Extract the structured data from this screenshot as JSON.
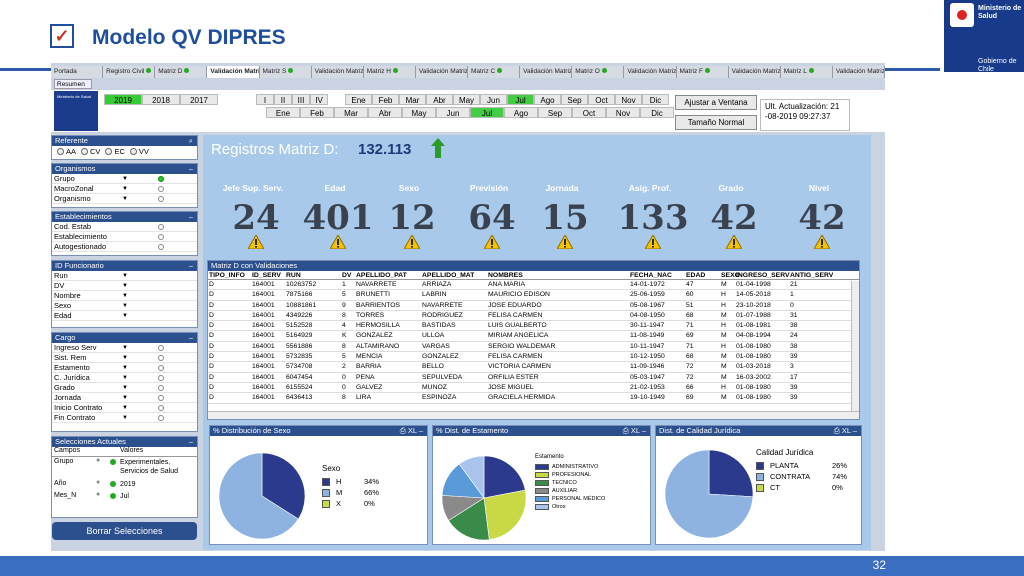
{
  "slide": {
    "title": "Modelo QV DIPRES",
    "checkmark": "✓",
    "page": "32"
  },
  "logo": {
    "line1": "Ministerio de Salud",
    "line2": "Gobierno de Chile"
  },
  "tabs": [
    {
      "label": "Portada",
      "dot": false
    },
    {
      "label": "Registro Civil",
      "dot": true
    },
    {
      "label": "Matriz D",
      "dot": true
    },
    {
      "label": "Validación Matriz D",
      "dot": false,
      "active": true
    },
    {
      "label": "Matriz S",
      "dot": true
    },
    {
      "label": "Validación Matriz S",
      "dot": true
    },
    {
      "label": "Matriz H",
      "dot": true
    },
    {
      "label": "Validación Matriz H",
      "dot": true
    },
    {
      "label": "Matriz C",
      "dot": true
    },
    {
      "label": "Validación Matriz C",
      "dot": true
    },
    {
      "label": "Matriz O",
      "dot": true
    },
    {
      "label": "Validación Matriz O",
      "dot": true
    },
    {
      "label": "Matriz F",
      "dot": true
    },
    {
      "label": "Validación Matriz F",
      "dot": true
    },
    {
      "label": "Matriz L",
      "dot": true
    },
    {
      "label": "Validación Matriz L",
      "dot": true
    }
  ],
  "resumen": "Resumen",
  "minilogo": "Ministerio de Salud",
  "years": [
    {
      "y": "2019",
      "sel": true
    },
    {
      "y": "2018",
      "sel": false
    },
    {
      "y": "2017",
      "sel": false
    }
  ],
  "periods": [
    "I",
    "II",
    "III",
    "IV"
  ],
  "months_top": [
    "Ene",
    "Feb",
    "Mar",
    "Abr",
    "May",
    "Jun",
    "Jul",
    "Ago",
    "Sep",
    "Oct",
    "Nov",
    "Dic"
  ],
  "months_bot": [
    "Ene",
    "Feb",
    "Mar",
    "Abr",
    "May",
    "Jun",
    "Jul",
    "Ago",
    "Sep",
    "Oct",
    "Nov",
    "Dic"
  ],
  "buttons": {
    "ajustar": "Ajustar a Ventana",
    "tamano": "Tamaño Normal"
  },
  "update": {
    "l1": "Ult. Actualización: 21",
    "l2": "-08-2019 09:27:37"
  },
  "referente": {
    "title": "Referente",
    "options": [
      "AA",
      "CV",
      "EC",
      "VV"
    ]
  },
  "organismos": {
    "title": "Organismos",
    "rows": [
      {
        "label": "Grupo",
        "green": true
      },
      {
        "label": "MacroZonal",
        "green": false
      },
      {
        "label": "Organismo",
        "green": false
      }
    ]
  },
  "establecimientos": {
    "title": "Establecimientos",
    "rows": [
      {
        "label": "Cod. Estab",
        "green": false
      },
      {
        "label": "Establecimiento",
        "green": false
      },
      {
        "label": "Autogestionado",
        "green": false
      }
    ]
  },
  "funcionario": {
    "title": "ID Funcionario",
    "rows": [
      {
        "label": "Run"
      },
      {
        "label": "DV"
      },
      {
        "label": "Nombre"
      },
      {
        "label": "Sexo"
      },
      {
        "label": "Edad"
      }
    ]
  },
  "cargo": {
    "title": "Cargo",
    "rows": [
      {
        "label": "Ingreso Serv"
      },
      {
        "label": "Sist. Rem"
      },
      {
        "label": "Estamento"
      },
      {
        "label": "C. Jurídica"
      },
      {
        "label": "Grado"
      },
      {
        "label": "Jornada"
      },
      {
        "label": "Inicio Contrato"
      },
      {
        "label": "Fin Contrato"
      }
    ]
  },
  "selecciones": {
    "title": "Selecciones Actuales",
    "h1": "Campos",
    "h2": "Valores",
    "rows": [
      {
        "campo": "Grupo",
        "valor": "Experimentales, Servicios de Salud"
      },
      {
        "campo": "Año",
        "valor": "2019"
      },
      {
        "campo": "Mes_N",
        "valor": "Jul"
      }
    ]
  },
  "borrar": "Borrar Selecciones",
  "registros": {
    "label": "Registros Matriz D:",
    "value": "132.113"
  },
  "kpis": [
    {
      "label": "Jefe Sup. Serv.",
      "value": "24"
    },
    {
      "label": "Edad",
      "value": "401"
    },
    {
      "label": "Sexo",
      "value": "12"
    },
    {
      "label": "Previsión",
      "value": "64"
    },
    {
      "label": "Jornada",
      "value": "15"
    },
    {
      "label": "Asig. Prof.",
      "value": "133"
    },
    {
      "label": "Grado",
      "value": "42"
    },
    {
      "label": "Nivel",
      "value": "42"
    }
  ],
  "table": {
    "title": "Matriz D con Validaciones",
    "headers": [
      "TIPO_INFO",
      "ID_SERV",
      "RUN",
      "DV",
      "APELLIDO_PAT",
      "APELLIDO_MAT",
      "NOMBRES",
      "FECHA_NAC",
      "EDAD",
      "SEXO",
      "INGRESO_SERV",
      "ANTIG_SERV"
    ],
    "rows": [
      [
        "D",
        "164001",
        "10263752",
        "1",
        "NAVARRETE",
        "ARRIAZA",
        "ANA MARIA",
        "14-01-1972",
        "47",
        "M",
        "01-04-1998",
        "21"
      ],
      [
        "D",
        "164001",
        "7875166",
        "5",
        "BRUNETTI",
        "LABRIN",
        "MAURICIO EDISON",
        "25-06-1959",
        "60",
        "H",
        "14-05-2018",
        "1"
      ],
      [
        "D",
        "164001",
        "10881861",
        "9",
        "BARRIENTOS",
        "NAVARRETE",
        "JOSE EDUARDO",
        "05-08-1967",
        "51",
        "H",
        "23-10-2018",
        "0"
      ],
      [
        "D",
        "164001",
        "4349226",
        "8",
        "TORRES",
        "RODRIGUEZ",
        "FELISA CARMEN",
        "04-08-1950",
        "68",
        "M",
        "01-07-1988",
        "31"
      ],
      [
        "D",
        "164001",
        "5152528",
        "4",
        "HERMOSILLA",
        "BASTIDAS",
        "LUIS GUALBERTO",
        "30-11-1947",
        "71",
        "H",
        "01-08-1981",
        "38"
      ],
      [
        "D",
        "164001",
        "5164929",
        "K",
        "GONZALEZ",
        "ULLOA",
        "MIRIAM ANGELICA",
        "11-08-1949",
        "69",
        "M",
        "04-08-1994",
        "24"
      ],
      [
        "D",
        "164001",
        "5561886",
        "8",
        "ALTAMIRANO",
        "VARGAS",
        "SERGIO WALDEMAR",
        "10-11-1947",
        "71",
        "H",
        "01-08-1980",
        "38"
      ],
      [
        "D",
        "164001",
        "5732835",
        "5",
        "MENCIA",
        "GONZALEZ",
        "FELISA CARMEN",
        "10-12-1950",
        "68",
        "M",
        "01-08-1980",
        "39"
      ],
      [
        "D",
        "164001",
        "5734708",
        "2",
        "BARRIA",
        "BELLO",
        "VICTORIA CARMEN",
        "11-09-1946",
        "72",
        "M",
        "01-03-2018",
        "3"
      ],
      [
        "D",
        "164001",
        "6047454",
        "0",
        "PENA",
        "SEPULVEDA",
        "ORFILIA ESTER",
        "05-03-1947",
        "72",
        "M",
        "16-03-2002",
        "17"
      ],
      [
        "D",
        "164001",
        "6155524",
        "0",
        "GALVEZ",
        "MUNOZ",
        "JOSE MIGUEL",
        "21-02-1953",
        "66",
        "H",
        "01-08-1980",
        "39"
      ],
      [
        "D",
        "164001",
        "6436413",
        "8",
        "LIRA",
        "ESPINOZA",
        "GRACIELA HERMIDA",
        "19-10-1949",
        "69",
        "M",
        "01-08-1980",
        "39"
      ]
    ]
  },
  "chart_sexo": {
    "title": "% Distribución de Sexo",
    "legend_title": "Sexo"
  },
  "chart_estamento": {
    "title": "% Dist. de Estamento",
    "legend_title": "Estamento"
  },
  "chart_juridica": {
    "title": "Dist. de Calidad Jurídica",
    "legend_title": "Calidad Jurídica"
  },
  "chart_data": [
    {
      "type": "pie",
      "title": "% Distribución de Sexo",
      "categories": [
        "H",
        "M",
        "X"
      ],
      "values": [
        34,
        66,
        0
      ],
      "value_labels": [
        "34%",
        "66%",
        "0%"
      ],
      "colors": [
        "#2b3a8c",
        "#8fb3e0",
        "#c9d845"
      ]
    },
    {
      "type": "pie",
      "title": "% Dist. de Estamento",
      "categories": [
        "ADMINISTRATIVO",
        "PROFESIONAL",
        "TECNICO",
        "AUXILIAR",
        "PERSONAL MÉDICO",
        "Otros"
      ],
      "values": [
        22,
        26,
        18,
        10,
        14,
        10
      ],
      "colors": [
        "#2b3a8c",
        "#c9d845",
        "#3a8a4a",
        "#8a8a8a",
        "#5a9ad8",
        "#a8c4ec"
      ]
    },
    {
      "type": "pie",
      "title": "Dist. de Calidad Jurídica",
      "categories": [
        "PLANTA",
        "CONTRATA",
        "CT"
      ],
      "values": [
        26,
        74,
        0
      ],
      "value_labels": [
        "26%",
        "74%",
        "0%"
      ],
      "colors": [
        "#2b3a8c",
        "#8fb3e0",
        "#c9d845"
      ]
    }
  ]
}
